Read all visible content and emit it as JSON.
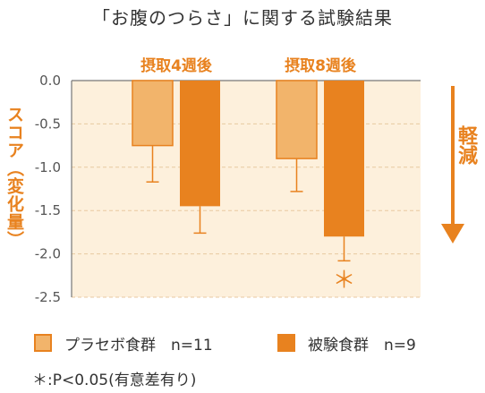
{
  "chart_data": {
    "type": "bar",
    "title": "「お腹のつらさ」に関する試験結果",
    "ylabel": "スコア（変化量）",
    "xlabel": "",
    "categories": [
      "摂取4週後",
      "摂取8週後"
    ],
    "ylim": [
      -2.5,
      0.0
    ],
    "yticks": [
      "0.0",
      "-0.5",
      "-1.0",
      "-1.5",
      "-2.0",
      "-2.5"
    ],
    "series": [
      {
        "name": "プラセボ食群　n=11",
        "values": [
          -0.75,
          -0.9
        ],
        "errors": [
          0.42,
          0.38
        ],
        "color": "#f2b46b"
      },
      {
        "name": "被験食群　n=9",
        "values": [
          -1.45,
          -1.8
        ],
        "errors": [
          0.31,
          0.28
        ],
        "color": "#e8821f"
      }
    ],
    "significance_marker": "＊",
    "arrow_label": "軽減",
    "footnote": "＊:P<0.05(有意差有り)"
  }
}
